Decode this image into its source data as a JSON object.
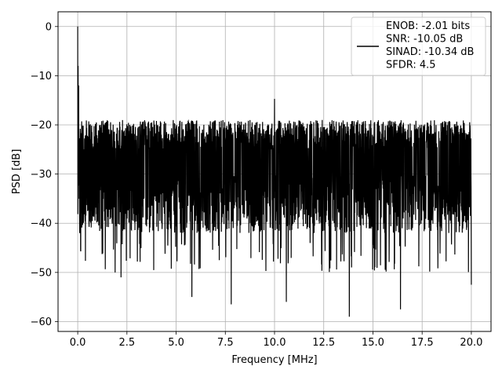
{
  "chart_data": {
    "type": "line",
    "xlabel": "Frequency [MHz]",
    "ylabel": "PSD [dB]",
    "xlim": [
      -1.0,
      21.0
    ],
    "ylim": [
      -62,
      3
    ],
    "xticks": [
      0.0,
      2.5,
      5.0,
      7.5,
      10.0,
      12.5,
      15.0,
      17.5,
      20.0
    ],
    "xtick_labels": [
      "0.0",
      "2.5",
      "5.0",
      "7.5",
      "10.0",
      "12.5",
      "15.0",
      "17.5",
      "20.0"
    ],
    "yticks": [
      0,
      -10,
      -20,
      -30,
      -40,
      -50,
      -60
    ],
    "ytick_labels": [
      "0",
      "−10",
      "−20",
      "−30",
      "−40",
      "−50",
      "−60"
    ],
    "grid": true,
    "legend_position": "top-right",
    "line_color": "#000000",
    "legend": {
      "lines": [
        "ENOB: -2.01 bits",
        "SNR: -10.05 dB",
        "SINAD: -10.34 dB",
        "SFDR: 4.5"
      ]
    },
    "series": [
      {
        "noise_floor_db": -30,
        "noise_upper_db": -21,
        "noise_lower_db": -50,
        "x_start": 0.0,
        "x_end": 20.0,
        "points": [
          {
            "x": 0.0,
            "y": 0
          },
          {
            "x": 0.02,
            "y": -8
          },
          {
            "x": 0.05,
            "y": -12
          },
          {
            "x": 0.1,
            "y": -15
          },
          {
            "x": 0.1,
            "y": -42
          },
          {
            "x": 1.9,
            "y": -50
          },
          {
            "x": 2.2,
            "y": -51
          },
          {
            "x": 5.8,
            "y": -55
          },
          {
            "x": 7.8,
            "y": -56.5
          },
          {
            "x": 10.0,
            "y": -14.7
          },
          {
            "x": 10.6,
            "y": -56
          },
          {
            "x": 13.8,
            "y": -59
          },
          {
            "x": 16.4,
            "y": -57.5
          },
          {
            "x": 20.0,
            "y": -52.5
          }
        ]
      }
    ]
  }
}
